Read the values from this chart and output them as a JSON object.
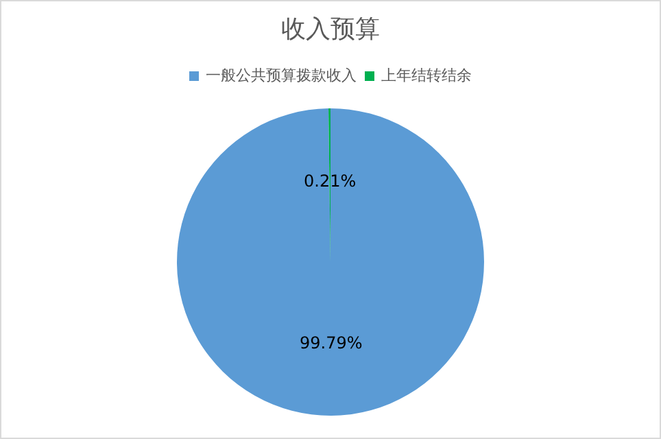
{
  "chart_data": {
    "type": "pie",
    "title": "收入预算",
    "categories": [
      "一般公共预算拨款收入",
      "上年结转结余"
    ],
    "values": [
      99.79,
      0.21
    ],
    "colors": [
      "#5b9bd5",
      "#00b050"
    ],
    "value_labels": [
      "99.79%",
      "0.21%"
    ],
    "legend": "top"
  }
}
